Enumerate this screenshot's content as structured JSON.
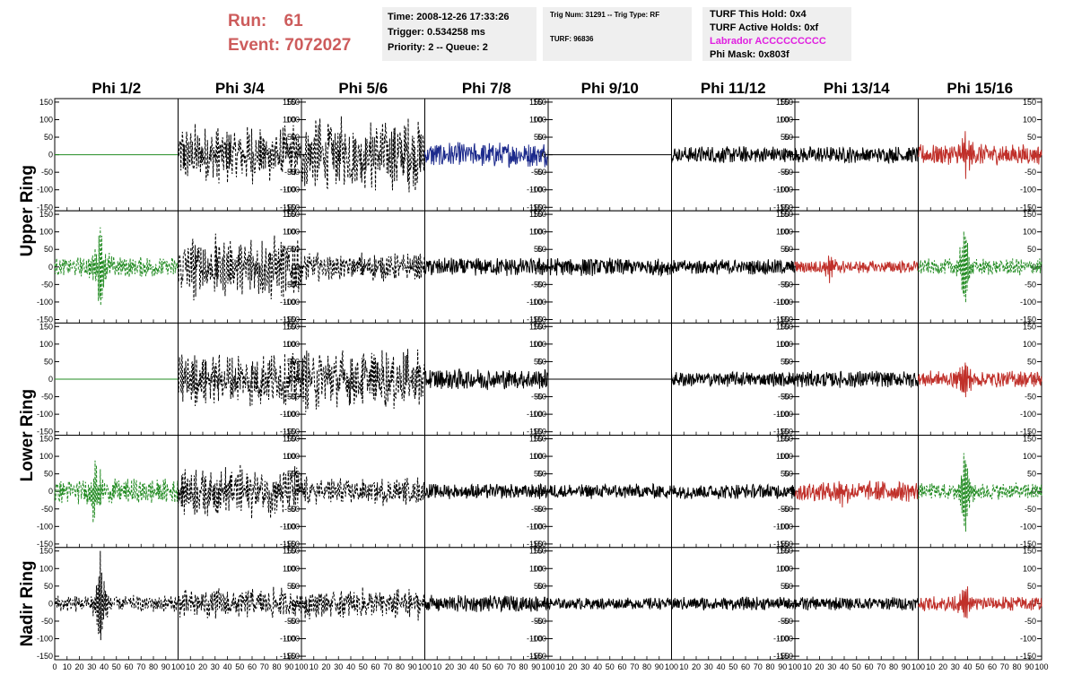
{
  "header": {
    "run_label": "Run:",
    "run_value": "61",
    "event_label": "Event:",
    "event_value": "7072027"
  },
  "info_box_1": {
    "time": "Time: 2008-12-26 17:33:26",
    "trigger": "Trigger: 0.534258 ms",
    "priority": "Priority: 2 -- Queue: 2"
  },
  "info_box_2": {
    "trig": "Trig Num: 31291 -- Trig Type: RF",
    "turf": "TURF: 96836"
  },
  "info_box_3": {
    "this_hold": "TURF This Hold: 0x4",
    "active_holds": "TURF Active Holds: 0xf",
    "labrador": "Labrador ACCCCCCCCC",
    "phi_mask": "Phi Mask: 0x803f"
  },
  "chart_data": {
    "type": "line",
    "title": "",
    "columns": [
      "Phi 1/2",
      "Phi 3/4",
      "Phi 5/6",
      "Phi 7/8",
      "Phi 9/10",
      "Phi 11/12",
      "Phi 13/14",
      "Phi 15/16"
    ],
    "row_labels": [
      {
        "text": "Upper Ring",
        "rows": [
          0,
          1
        ]
      },
      {
        "text": "Lower Ring",
        "rows": [
          2,
          3
        ]
      },
      {
        "text": "Nadir Ring",
        "rows": [
          4
        ]
      }
    ],
    "ylim": [
      -160,
      160
    ],
    "yticks": [
      -150,
      -100,
      -50,
      0,
      50,
      100,
      150
    ],
    "xlim": [
      0,
      100
    ],
    "xtick_labels": [
      "0",
      "10",
      "20",
      "30",
      "40",
      "50",
      "60",
      "70",
      "80",
      "90",
      "100"
    ],
    "colors": {
      "black": "#000000",
      "green": "#228b22",
      "blue": "#1c2a8c",
      "red": "#c0302a"
    },
    "panels": [
      [
        {
          "style": "flat",
          "color": "green",
          "amp": 0
        },
        {
          "style": "dashed",
          "color": "black",
          "amp": 75
        },
        {
          "style": "dashed",
          "color": "black",
          "amp": 95
        },
        {
          "style": "solid",
          "color": "blue",
          "amp": 30
        },
        {
          "style": "flat",
          "color": "black",
          "amp": 0
        },
        {
          "style": "solid",
          "color": "black",
          "amp": 20
        },
        {
          "style": "solid",
          "color": "black",
          "amp": 20
        },
        {
          "style": "solid",
          "color": "red",
          "amp": 25,
          "burst_at": 38,
          "burst_amp": 70
        }
      ],
      [
        {
          "style": "dashed",
          "color": "green",
          "amp": 25,
          "burst_at": 37,
          "burst_amp": 140
        },
        {
          "style": "dashed",
          "color": "black",
          "amp": 80
        },
        {
          "style": "dashed",
          "color": "black",
          "amp": 35
        },
        {
          "style": "solid",
          "color": "black",
          "amp": 22
        },
        {
          "style": "solid",
          "color": "black",
          "amp": 22
        },
        {
          "style": "solid",
          "color": "black",
          "amp": 18
        },
        {
          "style": "solid",
          "color": "red",
          "amp": 15,
          "burst_at": 28,
          "burst_amp": 40
        },
        {
          "style": "dashed",
          "color": "green",
          "amp": 20,
          "burst_at": 38,
          "burst_amp": 140
        }
      ],
      [
        {
          "style": "flat",
          "color": "green",
          "amp": 0
        },
        {
          "style": "dashed",
          "color": "black",
          "amp": 70
        },
        {
          "style": "dashed",
          "color": "black",
          "amp": 80
        },
        {
          "style": "solid",
          "color": "black",
          "amp": 25
        },
        {
          "style": "flat",
          "color": "black",
          "amp": 0
        },
        {
          "style": "solid",
          "color": "black",
          "amp": 18
        },
        {
          "style": "solid",
          "color": "black",
          "amp": 20
        },
        {
          "style": "solid",
          "color": "red",
          "amp": 20,
          "burst_at": 38,
          "burst_amp": 55
        }
      ],
      [
        {
          "style": "dashed",
          "color": "green",
          "amp": 30,
          "burst_at": 33,
          "burst_amp": 100
        },
        {
          "style": "dashed",
          "color": "black",
          "amp": 65
        },
        {
          "style": "dashed",
          "color": "black",
          "amp": 35
        },
        {
          "style": "solid",
          "color": "black",
          "amp": 18
        },
        {
          "style": "solid",
          "color": "black",
          "amp": 18
        },
        {
          "style": "solid",
          "color": "black",
          "amp": 18
        },
        {
          "style": "solid",
          "color": "red",
          "amp": 25,
          "burst_at": 38,
          "burst_amp": 40
        },
        {
          "style": "dashed",
          "color": "green",
          "amp": 20,
          "burst_at": 38,
          "burst_amp": 140
        }
      ],
      [
        {
          "style": "dashed",
          "color": "black",
          "amp": 20,
          "burst_at": 37,
          "burst_amp": 150
        },
        {
          "style": "dashed",
          "color": "black",
          "amp": 40
        },
        {
          "style": "dashed",
          "color": "black",
          "amp": 40
        },
        {
          "style": "solid",
          "color": "black",
          "amp": 20
        },
        {
          "style": "solid",
          "color": "black",
          "amp": 14
        },
        {
          "style": "solid",
          "color": "black",
          "amp": 16
        },
        {
          "style": "solid",
          "color": "black",
          "amp": 16
        },
        {
          "style": "solid",
          "color": "red",
          "amp": 18,
          "burst_at": 38,
          "burst_amp": 65
        }
      ]
    ]
  }
}
